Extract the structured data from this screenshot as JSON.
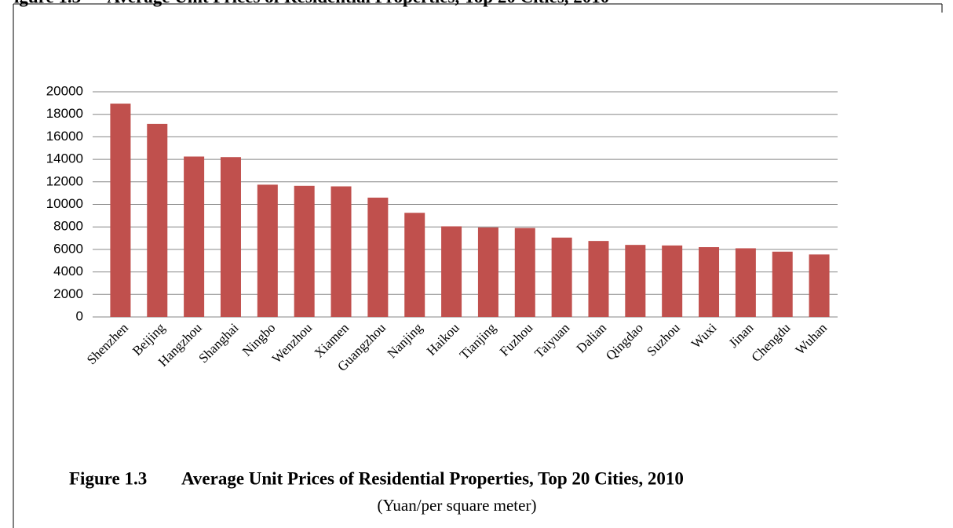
{
  "chart_data": {
    "type": "bar",
    "header_caption": "igure 1.3      Average Unit Prices of Residential Properties, Top 20 Cities, 2010",
    "figure_label": "Figure 1.3",
    "title": "Average Unit Prices of Residential Properties, Top 20 Cities, 2010",
    "subtitle": "(Yuan/per square meter)",
    "categories": [
      "Shenzhen",
      "Beijing",
      "Hangzhou",
      "Shanghai",
      "Ningbo",
      "Wenzhou",
      "Xiamen",
      "Guangzhou",
      "Nanjing",
      "Haikou",
      "Tianjing",
      "Fuzhou",
      "Taiyuan",
      "Dalian",
      "Qingdao",
      "Suzhou",
      "Wuxi",
      "Jinan",
      "Chengdu",
      "Wuhan"
    ],
    "values": [
      18950,
      17150,
      14250,
      14200,
      11750,
      11650,
      11600,
      10600,
      9250,
      8050,
      7950,
      7900,
      7050,
      6750,
      6400,
      6350,
      6200,
      6100,
      5800,
      5550
    ],
    "color": "#c0504d",
    "ylim": [
      0,
      20000
    ],
    "yticks": [
      0,
      2000,
      4000,
      6000,
      8000,
      10000,
      12000,
      14000,
      16000,
      18000,
      20000
    ],
    "grid": true
  }
}
